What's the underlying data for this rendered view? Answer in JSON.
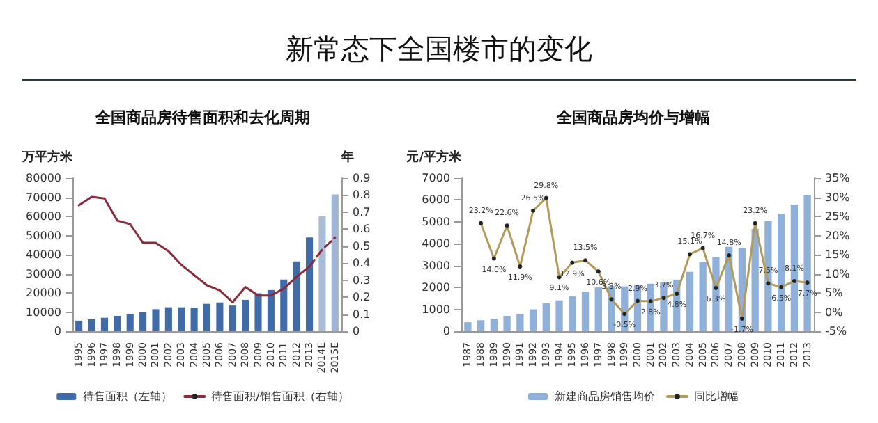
{
  "chart_data": [
    {
      "type": "other",
      "title": "新常态下全国楼市的变化"
    },
    {
      "type": "bar",
      "title": "全国商品房待售面积和去化周期",
      "ylabel": "万平方米",
      "y2label": "年",
      "categories": [
        "1995",
        "1996",
        "1997",
        "1998",
        "1999",
        "2000",
        "2001",
        "2002",
        "2003",
        "2004",
        "2005",
        "2006",
        "2007",
        "2008",
        "2009",
        "2010",
        "2011",
        "2012",
        "2013",
        "2014E",
        "2015E"
      ],
      "series": [
        {
          "name": "待售面积（左轴）",
          "color": "#3f6ca8",
          "colors": [
            "#3f6ca8",
            "#3f6ca8",
            "#3f6ca8",
            "#3f6ca8",
            "#3f6ca8",
            "#3f6ca8",
            "#3f6ca8",
            "#3f6ca8",
            "#3f6ca8",
            "#3f6ca8",
            "#3f6ca8",
            "#3f6ca8",
            "#3f6ca8",
            "#3f6ca8",
            "#3f6ca8",
            "#3f6ca8",
            "#3f6ca8",
            "#3f6ca8",
            "#3f6ca8",
            "#a9bcd8",
            "#9fb3d3"
          ],
          "values": [
            5500,
            6200,
            7000,
            8000,
            9000,
            9900,
            11500,
            12500,
            12500,
            12200,
            14300,
            15000,
            13400,
            16400,
            19800,
            21500,
            27000,
            36500,
            49000,
            60000,
            71500
          ]
        },
        {
          "name": "待售面积/销售面积（右轴）",
          "type": "line",
          "axis": "y2",
          "color": "#8b2a3a",
          "line_style": "solid",
          "values": [
            0.74,
            0.79,
            0.78,
            0.65,
            0.63,
            0.52,
            0.52,
            0.47,
            0.39,
            0.33,
            0.27,
            0.24,
            0.17,
            0.26,
            0.21,
            0.21,
            0.25,
            0.32,
            0.38,
            null,
            null
          ]
        },
        {
          "type": "line",
          "axis": "y2",
          "color": "#8b2a3a",
          "line_style": "dashed",
          "values": [
            null,
            null,
            null,
            null,
            null,
            null,
            null,
            null,
            null,
            null,
            null,
            null,
            null,
            null,
            null,
            null,
            null,
            null,
            0.38,
            0.48,
            0.55
          ]
        }
      ],
      "ylim": [
        0,
        80000
      ],
      "yticks": [
        0,
        10000,
        20000,
        30000,
        40000,
        50000,
        60000,
        70000,
        80000
      ],
      "y2lim": [
        0,
        0.9
      ],
      "y2ticks": [
        0,
        0.1,
        0.2,
        0.3,
        0.4,
        0.5,
        0.6,
        0.7,
        0.8,
        0.9
      ],
      "legend": "bottom",
      "grid": false,
      "marker": "none"
    },
    {
      "type": "bar",
      "title": "全国商品房均价与增幅",
      "ylabel": "元/平方米",
      "categories": [
        "1987",
        "1988",
        "1989",
        "1990",
        "1991",
        "1992",
        "1993",
        "1994",
        "1995",
        "1996",
        "1997",
        "1998",
        "1999",
        "2000",
        "2001",
        "2002",
        "2003",
        "2004",
        "2005",
        "2006",
        "2007",
        "2008",
        "2009",
        "2010",
        "2011",
        "2012",
        "2013"
      ],
      "series": [
        {
          "name": "新建商品房销售均价",
          "color": "#8fb0d8",
          "values": [
            410,
            500,
            570,
            700,
            790,
            1000,
            1290,
            1410,
            1590,
            1810,
            2000,
            2060,
            2050,
            2110,
            2170,
            2250,
            2360,
            2710,
            3170,
            3370,
            3860,
            3800,
            4680,
            5030,
            5360,
            5790,
            6240
          ]
        },
        {
          "name": "同比增幅",
          "type": "line",
          "axis": "y2",
          "color": "#b49a5a",
          "line_style": "solid",
          "marker": "circle",
          "values": [
            null,
            23.2,
            14.0,
            22.6,
            11.9,
            26.5,
            29.8,
            9.1,
            12.9,
            13.5,
            10.6,
            3.3,
            -0.5,
            2.9,
            2.8,
            3.7,
            4.8,
            15.1,
            16.7,
            6.3,
            14.8,
            -1.7,
            23.2,
            7.5,
            6.5,
            8.1,
            7.7
          ],
          "value_labels": [
            null,
            "23.2%",
            "14.0%",
            "22.6%",
            "11.9%",
            "26.5%",
            "29.8%",
            "9.1%",
            "12.9%",
            "13.5%",
            "10.6%",
            "3.3%",
            "-0.5%",
            "2.9%",
            "2.8%",
            "3.7%",
            "4.8%",
            "15.1%",
            "16.7%",
            "6.3%",
            "14.8%",
            "-1.7%",
            "23.2%",
            "7.5%",
            "6.5%",
            "8.1%",
            "7.7%"
          ]
        }
      ],
      "ylim": [
        0,
        7000
      ],
      "yticks": [
        0,
        1000,
        2000,
        3000,
        4000,
        5000,
        6000,
        7000
      ],
      "y2lim": [
        -5,
        35
      ],
      "y2ticks": [
        {
          "value": -5,
          "label": "-5%"
        },
        {
          "value": 0,
          "label": "0%"
        },
        {
          "value": 5,
          "label": "5%"
        },
        {
          "value": 10,
          "label": "10%"
        },
        {
          "value": 15,
          "label": "15%"
        },
        {
          "value": 20,
          "label": "20%"
        },
        {
          "value": 25,
          "label": "25%"
        },
        {
          "value": 30,
          "label": "30%"
        },
        {
          "value": 35,
          "label": "35%"
        }
      ],
      "legend": "bottom",
      "grid": false
    }
  ]
}
